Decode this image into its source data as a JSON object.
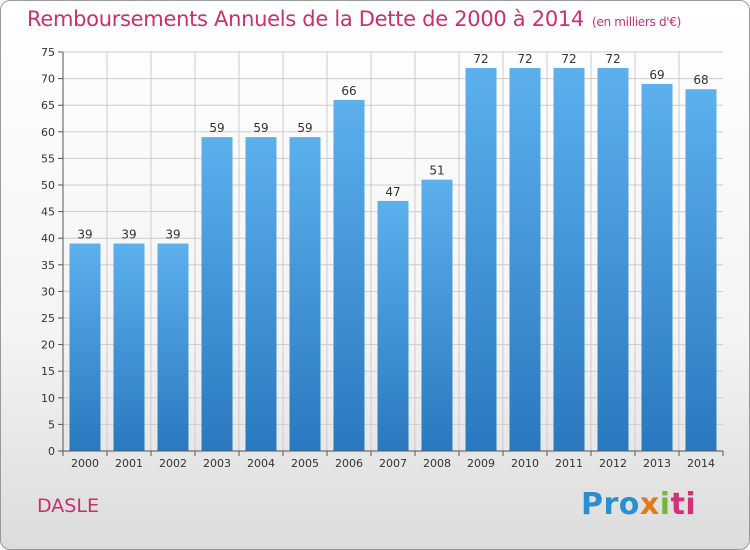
{
  "chart_data": {
    "type": "bar",
    "title": "Remboursements Annuels de la Dette de 2000 à 2014",
    "subtitle": "(en milliers d'€)",
    "categories": [
      "2000",
      "2001",
      "2002",
      "2003",
      "2004",
      "2005",
      "2006",
      "2007",
      "2008",
      "2009",
      "2010",
      "2011",
      "2012",
      "2013",
      "2014"
    ],
    "values": [
      39,
      39,
      39,
      59,
      59,
      59,
      66,
      47,
      51,
      72,
      72,
      72,
      72,
      69,
      68
    ],
    "ylim": [
      0,
      75
    ],
    "yticks": [
      0,
      5,
      10,
      15,
      20,
      25,
      30,
      35,
      40,
      45,
      50,
      55,
      60,
      65,
      70,
      75
    ],
    "grid": true,
    "bar_color": "#3a8fd6",
    "xlabel": "",
    "ylabel": ""
  },
  "footer": {
    "town": "DASLE",
    "brand": {
      "p1": "Pro",
      "p2": "x",
      "p3": "i",
      "p4": "ti"
    }
  },
  "colors": {
    "title": "#c8306e",
    "grid": "#cccccc"
  }
}
